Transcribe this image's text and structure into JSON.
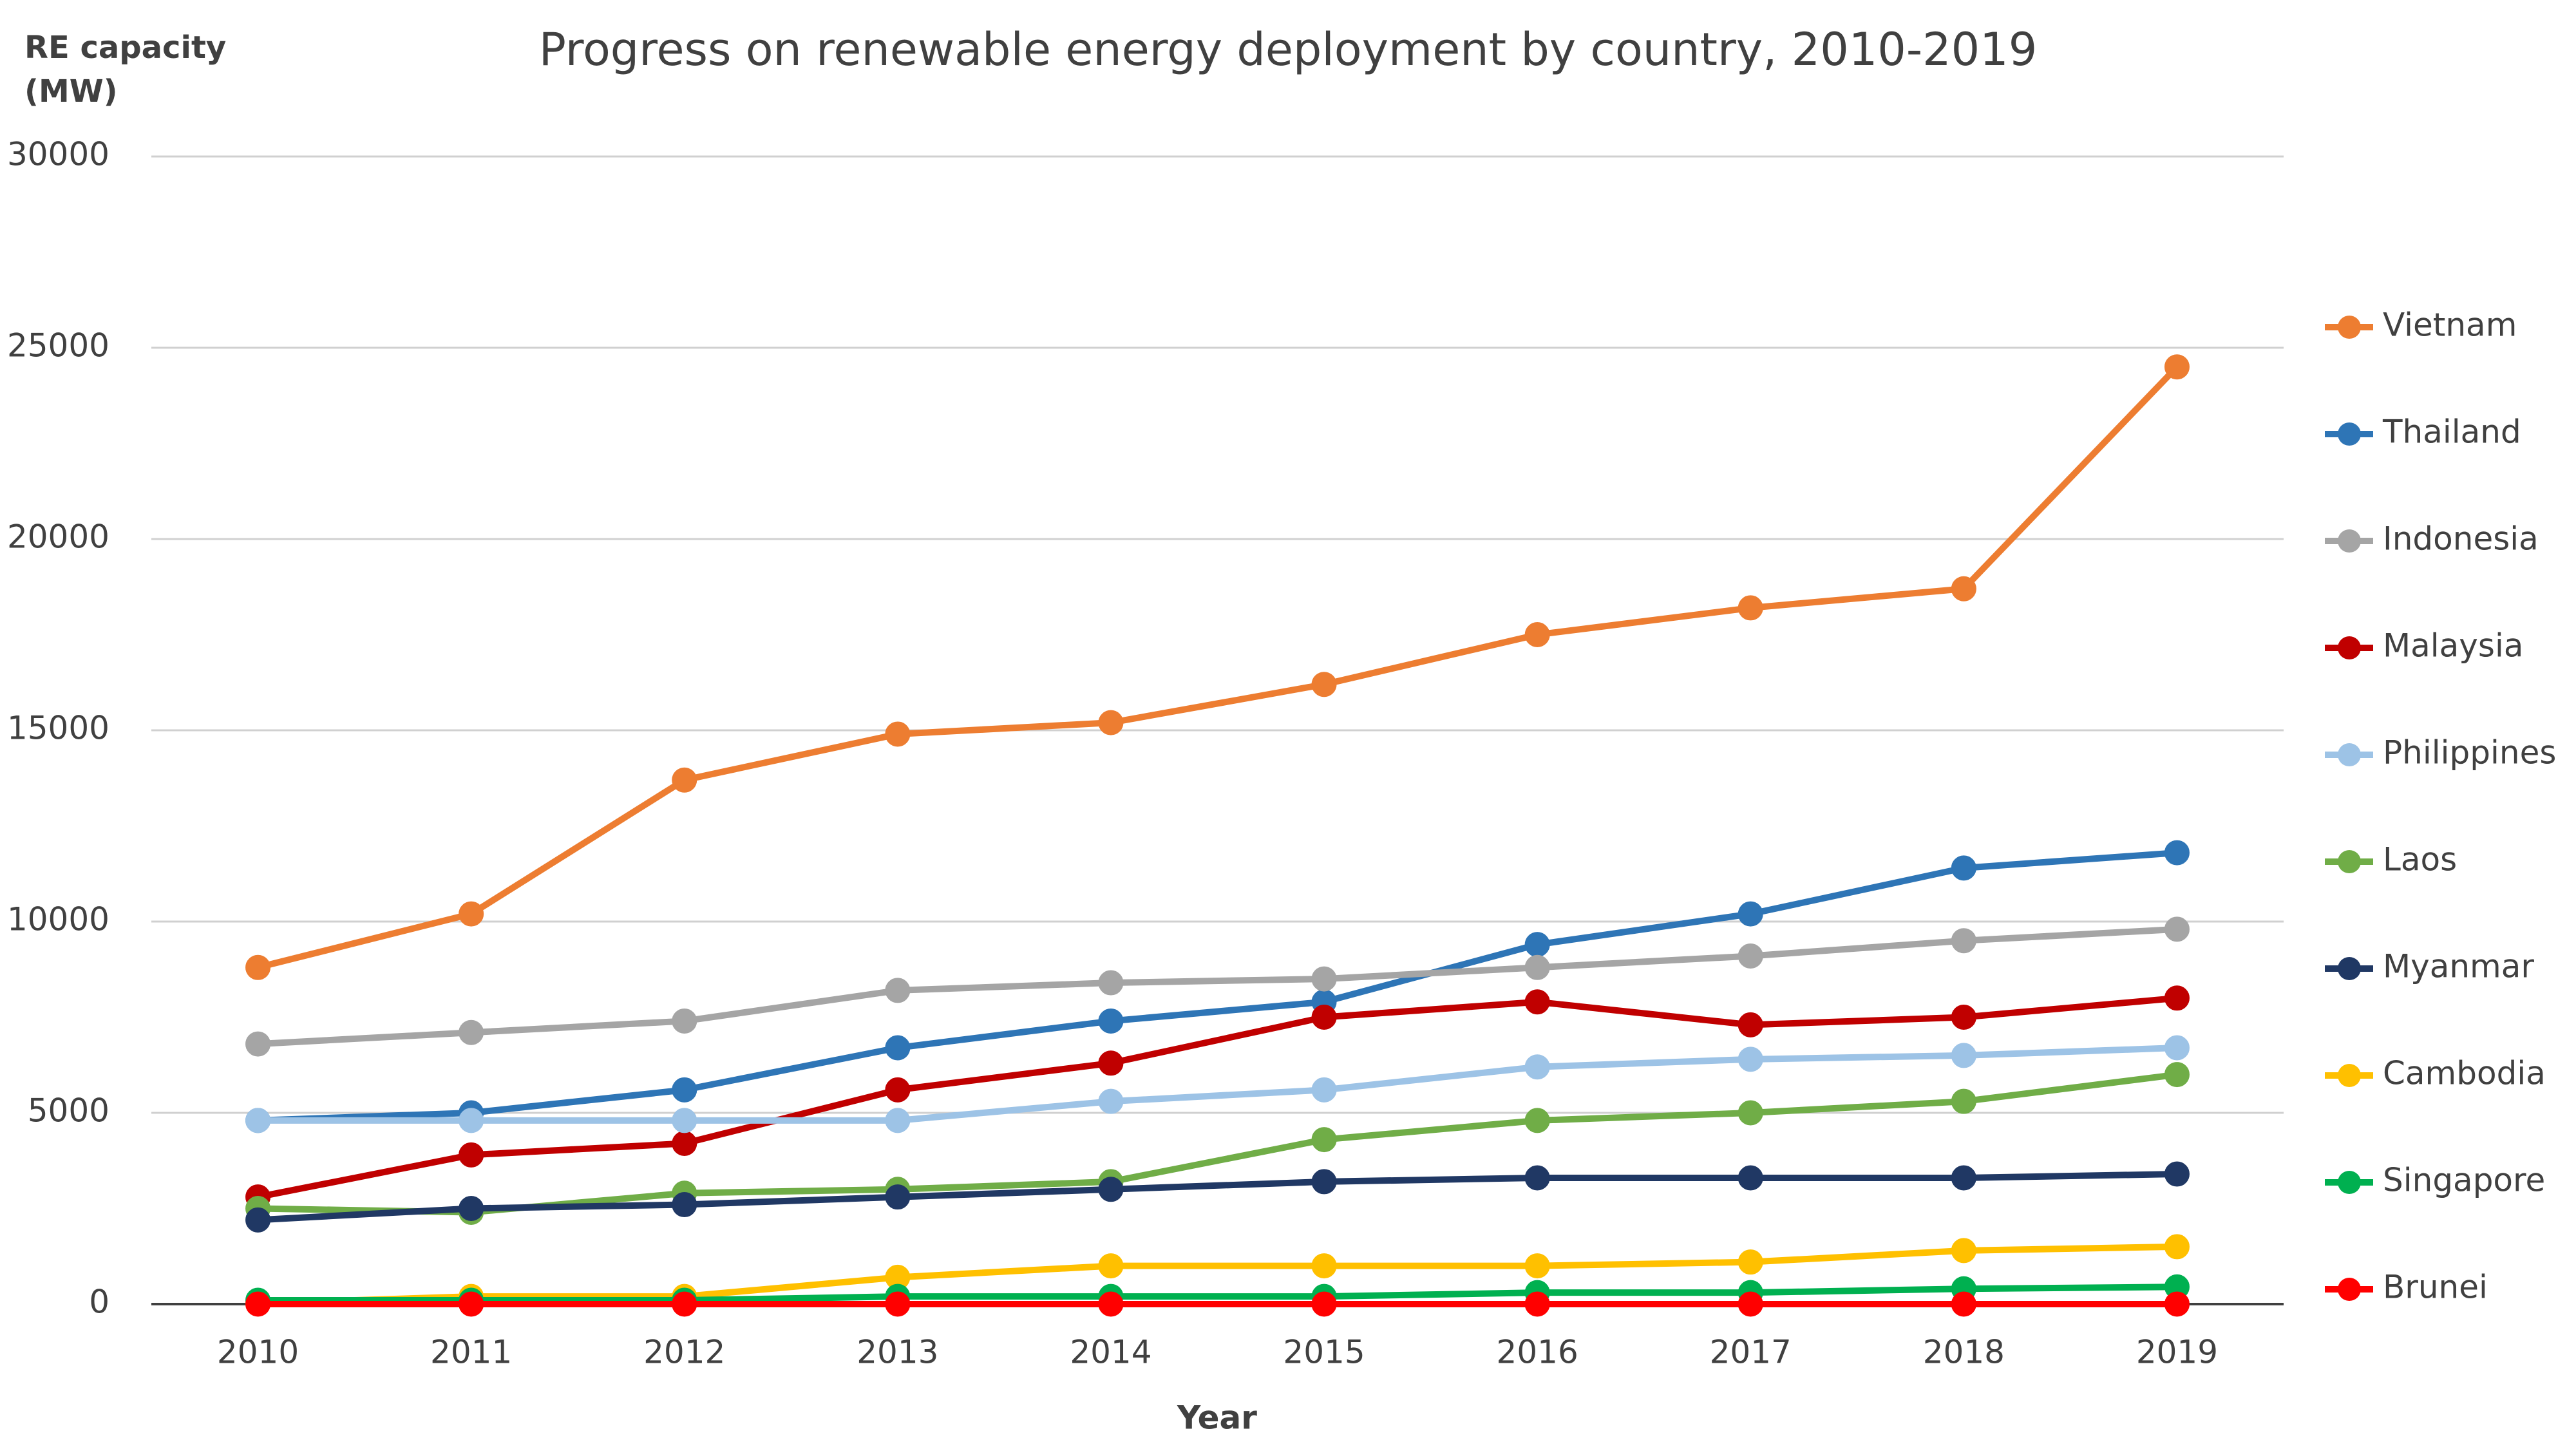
{
  "chart_data": {
    "type": "line",
    "title": "Progress on renewable energy deployment by country, 2010-2019",
    "xlabel": "Year",
    "ylabel": "RE capacity (MW)",
    "categories": [
      "2010",
      "2011",
      "2012",
      "2013",
      "2014",
      "2015",
      "2016",
      "2017",
      "2018",
      "2019"
    ],
    "ylim": [
      0,
      30000
    ],
    "yticks": [
      0,
      5000,
      10000,
      15000,
      20000,
      25000,
      30000
    ],
    "grid": true,
    "legend": "right",
    "series": [
      {
        "name": "Vietnam",
        "color": "#ed7d31",
        "values": [
          8800,
          10200,
          13700,
          14900,
          15200,
          16200,
          17500,
          18200,
          18700,
          24500
        ]
      },
      {
        "name": "Thailand",
        "color": "#2e75b6",
        "values": [
          4800,
          5000,
          5600,
          6700,
          7400,
          7900,
          9400,
          10200,
          11400,
          11800
        ]
      },
      {
        "name": "Indonesia",
        "color": "#a5a5a5",
        "values": [
          6800,
          7100,
          7400,
          8200,
          8400,
          8500,
          8800,
          9100,
          9500,
          9800
        ]
      },
      {
        "name": "Malaysia",
        "color": "#c00000",
        "values": [
          2800,
          3900,
          4200,
          5600,
          6300,
          7500,
          7900,
          7300,
          7500,
          8000
        ]
      },
      {
        "name": "Philippines",
        "color": "#9dc3e6",
        "values": [
          4800,
          4800,
          4800,
          4800,
          5300,
          5600,
          6200,
          6400,
          6500,
          6700
        ]
      },
      {
        "name": "Laos",
        "color": "#70ad47",
        "values": [
          2500,
          2400,
          2900,
          3000,
          3200,
          4300,
          4800,
          5000,
          5300,
          6000
        ]
      },
      {
        "name": "Myanmar",
        "color": "#203864",
        "values": [
          2200,
          2500,
          2600,
          2800,
          3000,
          3200,
          3300,
          3300,
          3300,
          3400
        ]
      },
      {
        "name": "Cambodia",
        "color": "#ffc000",
        "values": [
          20,
          200,
          200,
          700,
          1000,
          1000,
          1000,
          1100,
          1400,
          1500
        ]
      },
      {
        "name": "Singapore",
        "color": "#00b050",
        "values": [
          100,
          100,
          100,
          200,
          200,
          200,
          300,
          300,
          400,
          450
        ]
      },
      {
        "name": "Brunei",
        "color": "#ff0000",
        "values": [
          1,
          1,
          1,
          1,
          1,
          1,
          1,
          1,
          1,
          1
        ]
      }
    ]
  }
}
